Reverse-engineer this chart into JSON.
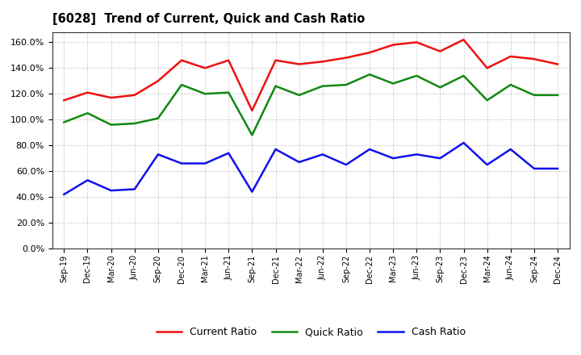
{
  "title": "[6028]  Trend of Current, Quick and Cash Ratio",
  "labels": [
    "Sep-19",
    "Dec-19",
    "Mar-20",
    "Jun-20",
    "Sep-20",
    "Dec-20",
    "Mar-21",
    "Jun-21",
    "Sep-21",
    "Dec-21",
    "Mar-22",
    "Jun-22",
    "Sep-22",
    "Dec-22",
    "Mar-23",
    "Jun-23",
    "Sep-23",
    "Dec-23",
    "Mar-24",
    "Jun-24",
    "Sep-24",
    "Dec-24"
  ],
  "current_ratio": [
    115,
    121,
    117,
    119,
    130,
    146,
    140,
    146,
    107,
    146,
    143,
    145,
    148,
    152,
    158,
    160,
    153,
    162,
    140,
    149,
    147,
    143
  ],
  "quick_ratio": [
    98,
    105,
    96,
    97,
    101,
    127,
    120,
    121,
    88,
    126,
    119,
    126,
    127,
    135,
    128,
    134,
    125,
    134,
    115,
    127,
    119,
    119
  ],
  "cash_ratio": [
    42,
    53,
    45,
    46,
    73,
    66,
    66,
    74,
    44,
    77,
    67,
    73,
    65,
    77,
    70,
    73,
    70,
    82,
    65,
    77,
    62,
    62
  ],
  "current_color": "#ee1111",
  "quick_color": "#118811",
  "cash_color": "#1111ee",
  "ylim": [
    0,
    168
  ],
  "yticks": [
    0,
    20,
    40,
    60,
    80,
    100,
    120,
    140,
    160
  ],
  "background_color": "#ffffff",
  "grid_color": "#999999",
  "legend_labels": [
    "Current Ratio",
    "Quick Ratio",
    "Cash Ratio"
  ]
}
